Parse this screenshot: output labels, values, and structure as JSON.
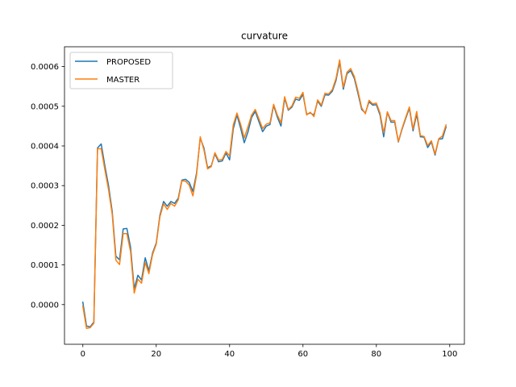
{
  "chart_data": {
    "type": "line",
    "title": "curvature",
    "xlabel": "",
    "ylabel": "",
    "xlim": [
      -5,
      104
    ],
    "ylim": [
      -0.0001,
      0.00065
    ],
    "grid": false,
    "legend_position": "top-left",
    "xticks": [
      0,
      20,
      40,
      60,
      80,
      100
    ],
    "xtick_labels": [
      "0",
      "20",
      "40",
      "60",
      "80",
      "100"
    ],
    "yticks": [
      0.0,
      0.0001,
      0.0002,
      0.0003,
      0.0004,
      0.0005,
      0.0006
    ],
    "ytick_labels": [
      "0.0000",
      "0.0001",
      "0.0002",
      "0.0003",
      "0.0004",
      "0.0005",
      "0.0006"
    ],
    "series": [
      {
        "name": "PROPOSED",
        "color": "#1f77b4",
        "values": [
          6e-06,
          -5.4e-05,
          -5.6e-05,
          -4.4e-05,
          0.000395,
          0.000405,
          0.00035,
          0.0003,
          0.000235,
          0.000122,
          0.000113,
          0.000191,
          0.000192,
          0.000145,
          4e-05,
          7.4e-05,
          6.2e-05,
          0.000118,
          8.5e-05,
          0.00013,
          0.000155,
          0.000225,
          0.00026,
          0.000248,
          0.00026,
          0.000255,
          0.000268,
          0.000314,
          0.000316,
          0.000308,
          0.000285,
          0.000332,
          0.00042,
          0.000395,
          0.000345,
          0.00035,
          0.00038,
          0.00036,
          0.000362,
          0.000382,
          0.000365,
          0.000443,
          0.000478,
          0.000445,
          0.000408,
          0.000435,
          0.000472,
          0.000487,
          0.000461,
          0.000436,
          0.00045,
          0.000454,
          0.000502,
          0.000473,
          0.00045,
          0.00052,
          0.00049,
          0.000498,
          0.000518,
          0.000515,
          0.00053,
          0.00048,
          0.000483,
          0.000478,
          0.000513,
          0.0005,
          0.000529,
          0.000528,
          0.000538,
          0.000565,
          0.000612,
          0.000543,
          0.000582,
          0.00059,
          0.00057,
          0.000532,
          0.000492,
          0.000483,
          0.000511,
          0.000503,
          0.000504,
          0.000478,
          0.000423,
          0.000485,
          0.00046,
          0.00046,
          0.00041,
          0.000442,
          0.000469,
          0.000495,
          0.000438,
          0.00048,
          0.000423,
          0.000422,
          0.000396,
          0.00041,
          0.000377,
          0.000417,
          0.000418,
          0.000448
        ]
      },
      {
        "name": "MASTER",
        "color": "#ff7f0e",
        "values": [
          -4e-06,
          -6e-05,
          -5.8e-05,
          -4.7e-05,
          0.000393,
          0.000393,
          0.00034,
          0.00029,
          0.000228,
          0.000112,
          0.000101,
          0.000179,
          0.000179,
          0.000134,
          2.9e-05,
          6.4e-05,
          5.4e-05,
          0.000106,
          7.8e-05,
          0.000126,
          0.000152,
          0.000221,
          0.000254,
          0.00024,
          0.000255,
          0.000248,
          0.000264,
          0.000312,
          0.000311,
          0.000301,
          0.000274,
          0.000327,
          0.000423,
          0.00039,
          0.000342,
          0.000348,
          0.000383,
          0.000364,
          0.000366,
          0.000386,
          0.000375,
          0.000453,
          0.000483,
          0.000455,
          0.00042,
          0.000448,
          0.000478,
          0.000492,
          0.000468,
          0.000444,
          0.000455,
          0.000458,
          0.000505,
          0.000478,
          0.000458,
          0.000524,
          0.000492,
          0.000501,
          0.000523,
          0.00052,
          0.000535,
          0.000478,
          0.000485,
          0.000474,
          0.000516,
          0.000503,
          0.000533,
          0.000531,
          0.000542,
          0.00057,
          0.000617,
          0.000548,
          0.000586,
          0.000595,
          0.000575,
          0.000538,
          0.000496,
          0.000481,
          0.000515,
          0.000506,
          0.000508,
          0.000483,
          0.000433,
          0.000486,
          0.000464,
          0.000464,
          0.000411,
          0.000444,
          0.000472,
          0.000498,
          0.000443,
          0.000487,
          0.000426,
          0.000424,
          0.000401,
          0.000413,
          0.00038,
          0.000418,
          0.000425,
          0.000453
        ]
      }
    ]
  }
}
